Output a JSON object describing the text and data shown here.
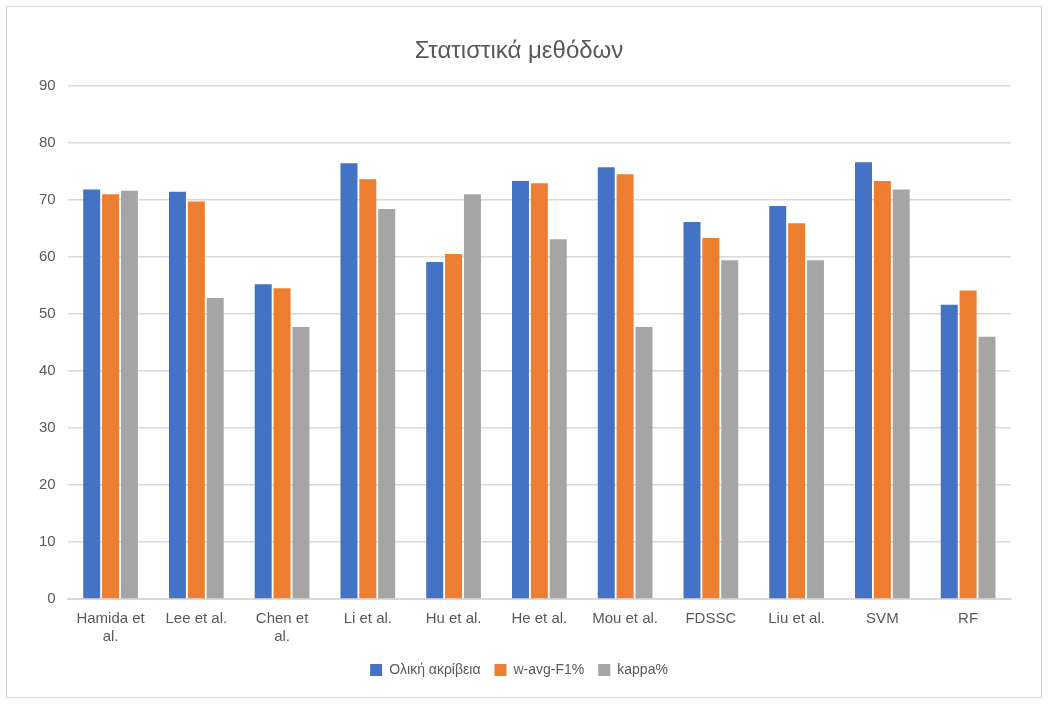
{
  "chart_data": {
    "type": "bar",
    "title": "Στατιστικά μεθόδων",
    "categories": [
      "Hamida et al.",
      "Lee et al.",
      "Chen et al.",
      "Li et al.",
      "Hu et al.",
      "He et al.",
      "Mou et al.",
      "FDSSC",
      "Liu et al.",
      "SVM",
      "RF"
    ],
    "series": [
      {
        "name": "Ολική ακρίβεια",
        "color": "#4472c4",
        "values": [
          71.8,
          71.4,
          55.2,
          76.4,
          59.1,
          73.3,
          75.7,
          66.1,
          68.9,
          76.6,
          51.6
        ]
      },
      {
        "name": "w-avg-F1%",
        "color": "#ed7d31",
        "values": [
          71.0,
          69.7,
          54.5,
          73.6,
          60.5,
          72.9,
          74.5,
          63.3,
          65.9,
          73.3,
          54.1
        ]
      },
      {
        "name": "kappa%",
        "color": "#a5a5a5",
        "values": [
          71.6,
          52.8,
          47.7,
          68.4,
          71.0,
          63.1,
          47.7,
          59.4,
          59.4,
          71.8,
          46.0
        ]
      }
    ],
    "ylim": [
      0,
      90
    ],
    "yticks": [
      0,
      10,
      20,
      30,
      40,
      50,
      60,
      70,
      80,
      90
    ],
    "grid": "y",
    "legend": "bottom"
  }
}
